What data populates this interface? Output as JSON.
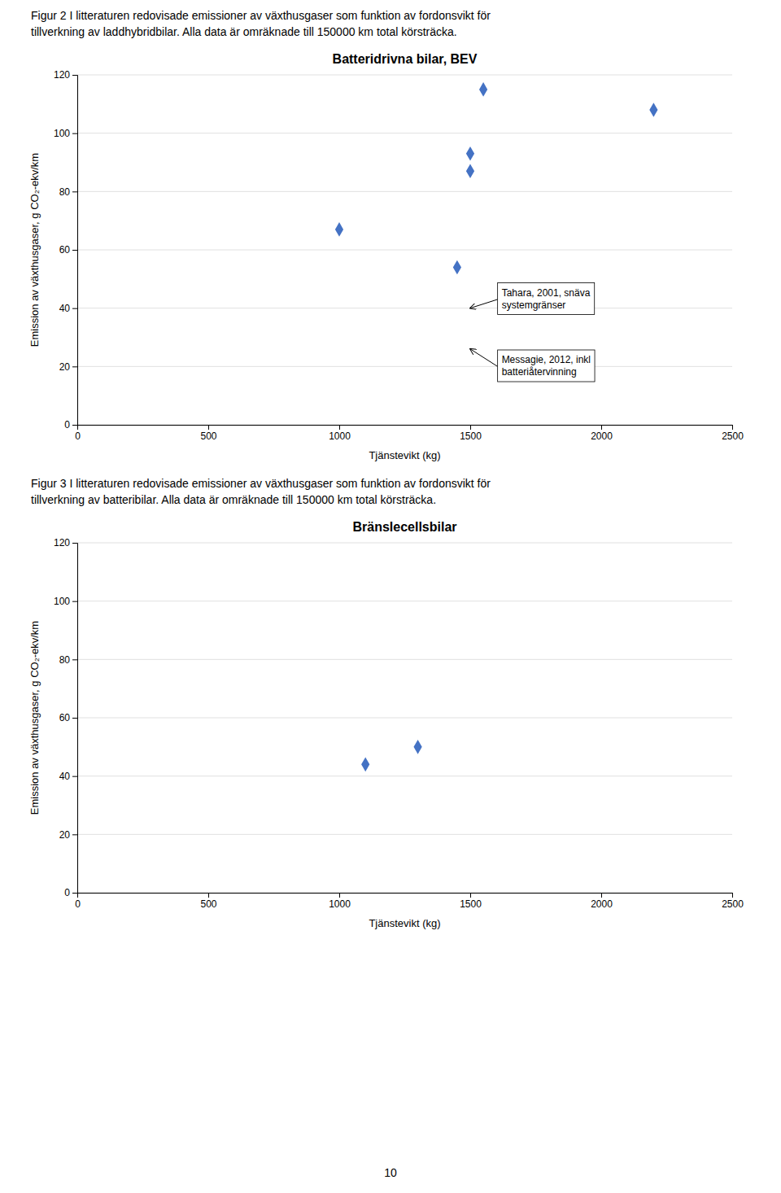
{
  "chart_data": [
    {
      "type": "scatter",
      "caption": [
        "Figur 2  I litteraturen redovisade emissioner av växthusgaser som funktion av fordonsvikt för",
        "tillverkning av laddhybridbilar. Alla data är omräknade till 150000 km total körsträcka."
      ],
      "title": "Batteridrivna bilar, BEV",
      "xlabel": "Tjänstevikt (kg)",
      "ylabel": "Emission av växthusgaser, g CO₂-ekv/km",
      "xlim": [
        0,
        2500
      ],
      "ylim": [
        0,
        120
      ],
      "xticks": [
        0,
        500,
        1000,
        1500,
        2000,
        2500
      ],
      "yticks": [
        0,
        20,
        40,
        60,
        80,
        100,
        120
      ],
      "x": [
        1000,
        1450,
        1500,
        1500,
        1550,
        2200
      ],
      "values": [
        67,
        54,
        93,
        87,
        115,
        108
      ],
      "color": "#4472c4",
      "marker": "diamond",
      "grid": true,
      "annotations": [
        {
          "text": "Tahara, 2001, snäva\nsystemgränser",
          "xy": [
            1500,
            40
          ],
          "xytext": [
            1620,
            43
          ]
        },
        {
          "text": "Messagie, 2012, inkl\nbatteriåtervinning",
          "xy": [
            1500,
            26
          ],
          "xytext": [
            1620,
            20
          ]
        }
      ]
    },
    {
      "type": "scatter",
      "caption": [
        "Figur 3  I litteraturen redovisade emissioner av växthusgaser som funktion av fordonsvikt för",
        "tillverkning av batteribilar. Alla data är omräknade till 150000 km total körsträcka."
      ],
      "title": "Bränslecellsbilar",
      "xlabel": "Tjänstevikt (kg)",
      "ylabel": "Emission av växthusgaser, g CO₂-ekv/km",
      "xlim": [
        0,
        2500
      ],
      "ylim": [
        0,
        120
      ],
      "xticks": [
        0,
        500,
        1000,
        1500,
        2000,
        2500
      ],
      "yticks": [
        0,
        20,
        40,
        60,
        80,
        100,
        120
      ],
      "x": [
        1100,
        1300
      ],
      "values": [
        44,
        50
      ],
      "color": "#4472c4",
      "marker": "diamond",
      "grid": true
    }
  ],
  "page_number": "10"
}
